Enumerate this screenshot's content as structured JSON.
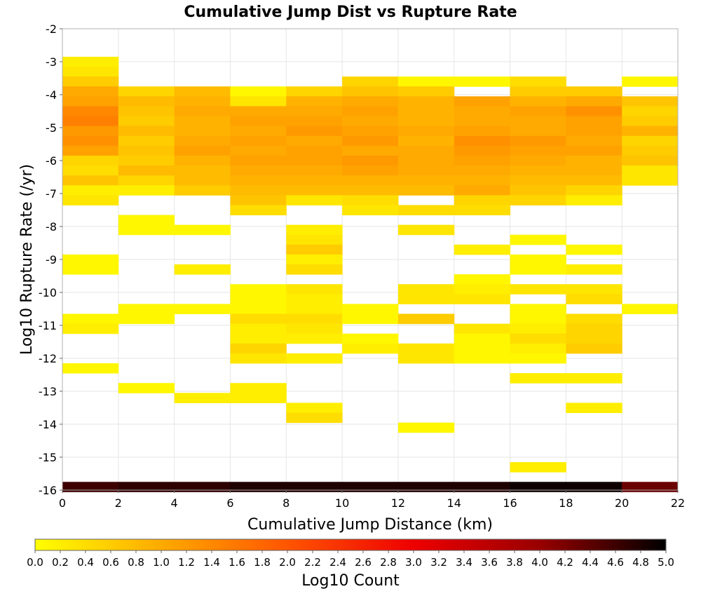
{
  "chart_data": {
    "type": "heatmap",
    "title": "Cumulative Jump Dist vs Rupture Rate",
    "xlabel": "Cumulative Jump Distance (km)",
    "ylabel": "Log10 Rupture Rate (/yr)",
    "xlim": [
      0,
      22
    ],
    "ylim": [
      -16,
      -2
    ],
    "x_ticks": [
      "0",
      "2",
      "4",
      "6",
      "8",
      "10",
      "12",
      "14",
      "16",
      "18",
      "20",
      "22"
    ],
    "y_ticks": [
      "-16",
      "-15",
      "-14",
      "-13",
      "-12",
      "-11",
      "-10",
      "-9",
      "-8",
      "-7",
      "-6",
      "-5",
      "-4",
      "-3",
      "-2"
    ],
    "x_bin_width": 2,
    "y_bin_width": 0.3,
    "grid": true,
    "colorbar": {
      "label": "Log10 Count",
      "range": [
        0,
        5
      ],
      "ticks": [
        "0.0",
        "0.2",
        "0.4",
        "0.6",
        "0.8",
        "1.0",
        "1.2",
        "1.4",
        "1.6",
        "1.8",
        "2.0",
        "2.2",
        "2.4",
        "2.6",
        "2.8",
        "3.0",
        "3.2",
        "3.4",
        "3.6",
        "3.8",
        "4.0",
        "4.2",
        "4.4",
        "4.6",
        "4.8",
        "5.0"
      ],
      "colors": [
        "#ffff00",
        "#ffaa00",
        "#ff5500",
        "#ee0000",
        "#990000",
        "#000000"
      ]
    },
    "cells": [
      [
        0,
        -3.0,
        0.2
      ],
      [
        0,
        -3.3,
        0.3
      ],
      [
        0,
        -3.6,
        0.6
      ],
      [
        0,
        -3.9,
        1.0
      ],
      [
        0,
        -4.2,
        1.1
      ],
      [
        0,
        -4.5,
        1.4
      ],
      [
        0,
        -4.8,
        1.5
      ],
      [
        0,
        -5.1,
        1.2
      ],
      [
        0,
        -5.4,
        1.3
      ],
      [
        0,
        -5.7,
        1.1
      ],
      [
        0,
        -6.0,
        0.5
      ],
      [
        0,
        -6.3,
        0.4
      ],
      [
        0,
        -6.6,
        0.7
      ],
      [
        0,
        -6.9,
        0.2
      ],
      [
        0,
        -7.2,
        0.3
      ],
      [
        0,
        -9.0,
        0.1
      ],
      [
        0,
        -9.3,
        0.1
      ],
      [
        0,
        -10.8,
        0.1
      ],
      [
        0,
        -11.1,
        0.2
      ],
      [
        0,
        -12.3,
        0.1
      ],
      [
        0,
        -15.9,
        4.6
      ],
      [
        2,
        -3.9,
        0.5
      ],
      [
        2,
        -4.2,
        0.8
      ],
      [
        2,
        -4.5,
        0.7
      ],
      [
        2,
        -4.8,
        0.6
      ],
      [
        2,
        -5.1,
        0.8
      ],
      [
        2,
        -5.4,
        0.6
      ],
      [
        2,
        -5.7,
        0.7
      ],
      [
        2,
        -6.0,
        0.6
      ],
      [
        2,
        -6.3,
        0.8
      ],
      [
        2,
        -6.6,
        0.5
      ],
      [
        2,
        -6.9,
        0.2
      ],
      [
        2,
        -7.8,
        0.1
      ],
      [
        2,
        -8.1,
        0.1
      ],
      [
        2,
        -10.5,
        0.1
      ],
      [
        2,
        -10.8,
        0.1
      ],
      [
        2,
        -12.9,
        0.1
      ],
      [
        2,
        -15.9,
        4.7
      ],
      [
        4,
        -3.9,
        0.8
      ],
      [
        4,
        -4.2,
        0.9
      ],
      [
        4,
        -4.5,
        1.0
      ],
      [
        4,
        -4.8,
        0.9
      ],
      [
        4,
        -5.1,
        0.9
      ],
      [
        4,
        -5.4,
        1.0
      ],
      [
        4,
        -5.7,
        1.1
      ],
      [
        4,
        -6.0,
        0.9
      ],
      [
        4,
        -6.3,
        0.8
      ],
      [
        4,
        -6.6,
        0.8
      ],
      [
        4,
        -6.9,
        0.6
      ],
      [
        4,
        -8.1,
        0.1
      ],
      [
        4,
        -9.3,
        0.2
      ],
      [
        4,
        -10.5,
        0.1
      ],
      [
        4,
        -13.2,
        0.2
      ],
      [
        4,
        -15.9,
        4.7
      ],
      [
        6,
        -3.9,
        0.1
      ],
      [
        6,
        -4.2,
        0.3
      ],
      [
        6,
        -4.5,
        1.0
      ],
      [
        6,
        -4.8,
        1.1
      ],
      [
        6,
        -5.1,
        1.0
      ],
      [
        6,
        -5.4,
        1.1
      ],
      [
        6,
        -5.7,
        1.0
      ],
      [
        6,
        -6.0,
        1.1
      ],
      [
        6,
        -6.3,
        1.0
      ],
      [
        6,
        -6.6,
        0.9
      ],
      [
        6,
        -6.9,
        0.8
      ],
      [
        6,
        -7.2,
        0.7
      ],
      [
        6,
        -7.5,
        0.4
      ],
      [
        6,
        -9.9,
        0.1
      ],
      [
        6,
        -10.2,
        0.1
      ],
      [
        6,
        -10.5,
        0.1
      ],
      [
        6,
        -10.8,
        0.4
      ],
      [
        6,
        -11.1,
        0.2
      ],
      [
        6,
        -11.4,
        0.2
      ],
      [
        6,
        -11.7,
        0.5
      ],
      [
        6,
        -12.0,
        0.3
      ],
      [
        6,
        -12.9,
        0.2
      ],
      [
        6,
        -13.2,
        0.2
      ],
      [
        6,
        -15.9,
        4.8
      ],
      [
        8,
        -3.9,
        0.5
      ],
      [
        8,
        -4.2,
        0.9
      ],
      [
        8,
        -4.5,
        1.0
      ],
      [
        8,
        -4.8,
        1.1
      ],
      [
        8,
        -5.1,
        1.2
      ],
      [
        8,
        -5.4,
        1.0
      ],
      [
        8,
        -5.7,
        1.1
      ],
      [
        8,
        -6.0,
        1.1
      ],
      [
        8,
        -6.3,
        1.0
      ],
      [
        8,
        -6.6,
        0.9
      ],
      [
        8,
        -6.9,
        0.8
      ],
      [
        8,
        -7.2,
        0.3
      ],
      [
        8,
        -8.1,
        0.2
      ],
      [
        8,
        -8.4,
        0.3
      ],
      [
        8,
        -8.7,
        0.6
      ],
      [
        8,
        -9.0,
        0.2
      ],
      [
        8,
        -9.3,
        0.4
      ],
      [
        8,
        -9.9,
        0.3
      ],
      [
        8,
        -10.2,
        0.2
      ],
      [
        8,
        -10.5,
        0.2
      ],
      [
        8,
        -10.8,
        0.4
      ],
      [
        8,
        -11.1,
        0.3
      ],
      [
        8,
        -11.4,
        0.2
      ],
      [
        8,
        -12.0,
        0.2
      ],
      [
        8,
        -13.5,
        0.2
      ],
      [
        8,
        -13.8,
        0.4
      ],
      [
        8,
        -15.9,
        4.8
      ],
      [
        10,
        -3.6,
        0.5
      ],
      [
        10,
        -3.9,
        0.7
      ],
      [
        10,
        -4.2,
        1.0
      ],
      [
        10,
        -4.5,
        1.1
      ],
      [
        10,
        -4.8,
        1.0
      ],
      [
        10,
        -5.1,
        1.1
      ],
      [
        10,
        -5.4,
        1.2
      ],
      [
        10,
        -5.7,
        1.0
      ],
      [
        10,
        -6.0,
        1.2
      ],
      [
        10,
        -6.3,
        1.1
      ],
      [
        10,
        -6.6,
        0.9
      ],
      [
        10,
        -6.9,
        0.8
      ],
      [
        10,
        -7.2,
        0.4
      ],
      [
        10,
        -7.5,
        0.3
      ],
      [
        10,
        -10.5,
        0.1
      ],
      [
        10,
        -10.8,
        0.1
      ],
      [
        10,
        -11.4,
        0.1
      ],
      [
        10,
        -11.7,
        0.2
      ],
      [
        10,
        -15.9,
        4.8
      ],
      [
        12,
        -3.6,
        0.1
      ],
      [
        12,
        -3.9,
        0.6
      ],
      [
        12,
        -4.2,
        0.9
      ],
      [
        12,
        -4.5,
        0.9
      ],
      [
        12,
        -4.8,
        0.9
      ],
      [
        12,
        -5.1,
        1.0
      ],
      [
        12,
        -5.4,
        0.9
      ],
      [
        12,
        -5.7,
        1.0
      ],
      [
        12,
        -6.0,
        1.0
      ],
      [
        12,
        -6.3,
        1.0
      ],
      [
        12,
        -6.6,
        0.9
      ],
      [
        12,
        -6.9,
        0.8
      ],
      [
        12,
        -7.5,
        0.4
      ],
      [
        12,
        -8.1,
        0.3
      ],
      [
        12,
        -9.9,
        0.3
      ],
      [
        12,
        -10.2,
        0.3
      ],
      [
        12,
        -10.8,
        0.6
      ],
      [
        12,
        -11.7,
        0.3
      ],
      [
        12,
        -12.0,
        0.3
      ],
      [
        12,
        -14.1,
        0.1
      ],
      [
        12,
        -15.9,
        4.8
      ],
      [
        14,
        -3.6,
        0.1
      ],
      [
        14,
        -4.2,
        1.1
      ],
      [
        14,
        -4.5,
        1.0
      ],
      [
        14,
        -4.8,
        1.0
      ],
      [
        14,
        -5.1,
        1.1
      ],
      [
        14,
        -5.4,
        1.3
      ],
      [
        14,
        -5.7,
        1.2
      ],
      [
        14,
        -6.0,
        1.1
      ],
      [
        14,
        -6.3,
        1.0
      ],
      [
        14,
        -6.6,
        0.9
      ],
      [
        14,
        -6.9,
        1.0
      ],
      [
        14,
        -7.2,
        0.5
      ],
      [
        14,
        -7.5,
        0.4
      ],
      [
        14,
        -8.7,
        0.2
      ],
      [
        14,
        -9.6,
        0.1
      ],
      [
        14,
        -9.9,
        0.2
      ],
      [
        14,
        -10.2,
        0.3
      ],
      [
        14,
        -11.1,
        0.3
      ],
      [
        14,
        -11.4,
        0.1
      ],
      [
        14,
        -11.7,
        0.1
      ],
      [
        14,
        -12.0,
        0.1
      ],
      [
        14,
        -15.9,
        4.8
      ],
      [
        16,
        -3.6,
        0.4
      ],
      [
        16,
        -3.9,
        0.6
      ],
      [
        16,
        -4.2,
        0.9
      ],
      [
        16,
        -4.5,
        1.1
      ],
      [
        16,
        -4.8,
        1.0
      ],
      [
        16,
        -5.1,
        1.0
      ],
      [
        16,
        -5.4,
        1.2
      ],
      [
        16,
        -5.7,
        1.1
      ],
      [
        16,
        -6.0,
        1.0
      ],
      [
        16,
        -6.3,
        0.9
      ],
      [
        16,
        -6.6,
        0.8
      ],
      [
        16,
        -6.9,
        0.7
      ],
      [
        16,
        -7.2,
        0.5
      ],
      [
        16,
        -8.4,
        0.1
      ],
      [
        16,
        -9.0,
        0.1
      ],
      [
        16,
        -9.3,
        0.1
      ],
      [
        16,
        -9.9,
        0.3
      ],
      [
        16,
        -10.5,
        0.1
      ],
      [
        16,
        -10.8,
        0.1
      ],
      [
        16,
        -11.1,
        0.2
      ],
      [
        16,
        -11.4,
        0.4
      ],
      [
        16,
        -11.7,
        0.2
      ],
      [
        16,
        -12.0,
        0.1
      ],
      [
        16,
        -12.6,
        0.2
      ],
      [
        16,
        -15.3,
        0.2
      ],
      [
        16,
        -15.9,
        4.9
      ],
      [
        18,
        -3.9,
        0.6
      ],
      [
        18,
        -4.2,
        1.0
      ],
      [
        18,
        -4.5,
        1.3
      ],
      [
        18,
        -4.8,
        1.1
      ],
      [
        18,
        -5.1,
        1.1
      ],
      [
        18,
        -5.4,
        1.0
      ],
      [
        18,
        -5.7,
        1.1
      ],
      [
        18,
        -6.0,
        0.9
      ],
      [
        18,
        -6.3,
        0.9
      ],
      [
        18,
        -6.6,
        0.8
      ],
      [
        18,
        -6.9,
        0.5
      ],
      [
        18,
        -7.2,
        0.2
      ],
      [
        18,
        -8.7,
        0.1
      ],
      [
        18,
        -9.3,
        0.2
      ],
      [
        18,
        -9.9,
        0.3
      ],
      [
        18,
        -10.2,
        0.4
      ],
      [
        18,
        -10.8,
        0.4
      ],
      [
        18,
        -11.1,
        0.5
      ],
      [
        18,
        -11.4,
        0.5
      ],
      [
        18,
        -11.7,
        0.6
      ],
      [
        18,
        -12.6,
        0.2
      ],
      [
        18,
        -13.5,
        0.2
      ],
      [
        18,
        -15.9,
        4.9
      ],
      [
        20,
        -3.6,
        0.1
      ],
      [
        20,
        -4.2,
        0.7
      ],
      [
        20,
        -4.5,
        0.5
      ],
      [
        20,
        -4.8,
        0.6
      ],
      [
        20,
        -5.1,
        0.9
      ],
      [
        20,
        -5.4,
        0.5
      ],
      [
        20,
        -5.7,
        0.6
      ],
      [
        20,
        -6.0,
        0.7
      ],
      [
        20,
        -6.3,
        0.3
      ],
      [
        20,
        -6.6,
        0.3
      ],
      [
        20,
        -10.5,
        0.1
      ],
      [
        20,
        -15.9,
        4.3
      ]
    ]
  }
}
